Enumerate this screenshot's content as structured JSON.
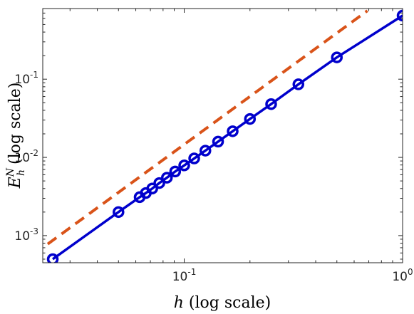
{
  "chart_data": {
    "type": "line",
    "title": "",
    "xlabel": {
      "main": "h",
      "suffix": " (log scale)"
    },
    "ylabel": {
      "base": "E",
      "sub": "h",
      "sup": "N",
      "suffix": " (log scale)"
    },
    "xscale": "log",
    "yscale": "log",
    "xlim": [
      0.0225,
      1.0
    ],
    "ylim": [
      0.00045,
      0.8
    ],
    "grid": false,
    "legend": "none",
    "x_ticks": [
      {
        "value": 0.1,
        "base": "10",
        "exp": "-1"
      },
      {
        "value": 1,
        "base": "10",
        "exp": "0"
      }
    ],
    "y_ticks": [
      {
        "value": 0.001,
        "base": "10",
        "exp": "-3"
      },
      {
        "value": 0.01,
        "base": "10",
        "exp": "-2"
      },
      {
        "value": 0.1,
        "base": "10",
        "exp": "-1"
      }
    ],
    "series": [
      {
        "style": "solid-line-circle-markers",
        "color": "#0000cc",
        "x": [
          0.025,
          0.05,
          0.0625,
          0.0667,
          0.0714,
          0.0769,
          0.0833,
          0.0909,
          0.1,
          0.1111,
          0.125,
          0.1429,
          0.1667,
          0.2,
          0.25,
          0.3333,
          0.5,
          1.0
        ],
        "y": [
          0.0005,
          0.002,
          0.0031,
          0.0035,
          0.004,
          0.0047,
          0.0055,
          0.0066,
          0.0079,
          0.0097,
          0.0122,
          0.0159,
          0.0216,
          0.031,
          0.048,
          0.086,
          0.19,
          0.65
        ]
      },
      {
        "style": "dashed-line",
        "color": "#d95319",
        "x": [
          0.0205,
          0.69
        ],
        "y": [
          0.00058,
          0.75
        ]
      }
    ]
  }
}
